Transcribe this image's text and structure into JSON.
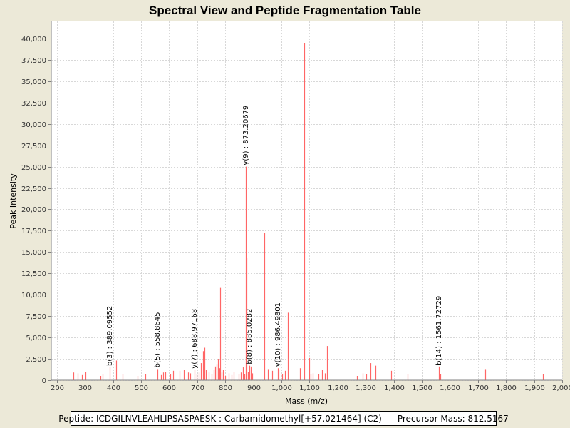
{
  "chart_data": {
    "type": "bar",
    "title": "Spectral View and Peptide Fragmentation Table",
    "xlabel": "Mass (m/z)",
    "ylabel": "Peak Intensity",
    "xlim": [
      180,
      2000
    ],
    "ylim": [
      0,
      42000
    ],
    "xticks": [
      200,
      300,
      400,
      500,
      600,
      700,
      800,
      900,
      1000,
      1100,
      1200,
      1300,
      1400,
      1500,
      1600,
      1700,
      1800,
      1900,
      2000
    ],
    "xtick_labels": [
      "200",
      "300",
      "400",
      "500",
      "600",
      "700",
      "800",
      "900",
      "1,000",
      "1,100",
      "1,200",
      "1,300",
      "1,400",
      "1,500",
      "1,600",
      "1,700",
      "1,800",
      "1,900",
      "2,000"
    ],
    "yticks": [
      0,
      2500,
      5000,
      7500,
      10000,
      12500,
      15000,
      17500,
      20000,
      22500,
      25000,
      27500,
      30000,
      32500,
      35000,
      37500,
      40000
    ],
    "ytick_labels": [
      "0",
      "2,500",
      "5,000",
      "7,500",
      "10,000",
      "12,500",
      "15,000",
      "17,500",
      "20,000",
      "22,500",
      "25,000",
      "27,500",
      "30,000",
      "32,500",
      "35,000",
      "37,500",
      "40,000"
    ],
    "grid": true,
    "bar_color": "#ff6666",
    "peaks": [
      [
        258,
        900
      ],
      [
        274,
        800
      ],
      [
        290,
        600
      ],
      [
        303,
        1000
      ],
      [
        356,
        500
      ],
      [
        363,
        700
      ],
      [
        389.1,
        1500
      ],
      [
        410,
        2300
      ],
      [
        433,
        700
      ],
      [
        488,
        500
      ],
      [
        516,
        700
      ],
      [
        558.9,
        1300
      ],
      [
        571,
        600
      ],
      [
        578,
        900
      ],
      [
        585,
        1000
      ],
      [
        604,
        700
      ],
      [
        614,
        1100
      ],
      [
        638,
        1100
      ],
      [
        651,
        1200
      ],
      [
        668,
        900
      ],
      [
        676,
        800
      ],
      [
        689.0,
        1200
      ],
      [
        697,
        700
      ],
      [
        706,
        900
      ],
      [
        714,
        2000
      ],
      [
        720,
        3400
      ],
      [
        725,
        3800
      ],
      [
        732,
        1200
      ],
      [
        742,
        900
      ],
      [
        752,
        700
      ],
      [
        758,
        1200
      ],
      [
        764,
        1600
      ],
      [
        769,
        1900
      ],
      [
        774,
        2500
      ],
      [
        778,
        1400
      ],
      [
        781,
        10800
      ],
      [
        787,
        900
      ],
      [
        793,
        1200
      ],
      [
        800,
        500
      ],
      [
        812,
        800
      ],
      [
        823,
        600
      ],
      [
        830,
        1000
      ],
      [
        848,
        700
      ],
      [
        856,
        900
      ],
      [
        864,
        1500
      ],
      [
        868,
        700
      ],
      [
        873.2,
        25000
      ],
      [
        876,
        14300
      ],
      [
        880,
        1000
      ],
      [
        885.0,
        1700
      ],
      [
        890,
        1600
      ],
      [
        897,
        800
      ],
      [
        938,
        17200
      ],
      [
        952,
        1300
      ],
      [
        968,
        1100
      ],
      [
        986.5,
        1400
      ],
      [
        990,
        1200
      ],
      [
        1003,
        700
      ],
      [
        1012,
        1100
      ],
      [
        1022,
        7900
      ],
      [
        1065,
        1400
      ],
      [
        1081,
        39500
      ],
      [
        1098,
        2600
      ],
      [
        1105,
        700
      ],
      [
        1112,
        800
      ],
      [
        1132,
        700
      ],
      [
        1145,
        1200
      ],
      [
        1155,
        800
      ],
      [
        1163,
        4000
      ],
      [
        1270,
        500
      ],
      [
        1288,
        800
      ],
      [
        1303,
        700
      ],
      [
        1318,
        2000
      ],
      [
        1335,
        1700
      ],
      [
        1390,
        1100
      ],
      [
        1448,
        700
      ],
      [
        1561.7,
        1600
      ],
      [
        1566,
        700
      ],
      [
        1727,
        1300
      ],
      [
        1932,
        700
      ]
    ],
    "annotations": [
      {
        "mz": 389.1,
        "text": "b(3) : 389.09552"
      },
      {
        "mz": 558.9,
        "text": "b(5) : 558.8645"
      },
      {
        "mz": 689.0,
        "text": "y(7) : 688.97168"
      },
      {
        "mz": 873.2,
        "text": "y(9) : 873.20679"
      },
      {
        "mz": 885.0,
        "text": "b(8) : 885.0282"
      },
      {
        "mz": 986.5,
        "text": "y(10) : 986.49801"
      },
      {
        "mz": 1561.7,
        "text": "b(14) : 1561.72729"
      }
    ]
  },
  "footer": {
    "peptide": "Peptide: ICDGILNVLEAHLIPSASPAESK : Carbamidomethyl[+57.021464] (C2)",
    "precursor": "Precursor Mass: 812.5167"
  }
}
